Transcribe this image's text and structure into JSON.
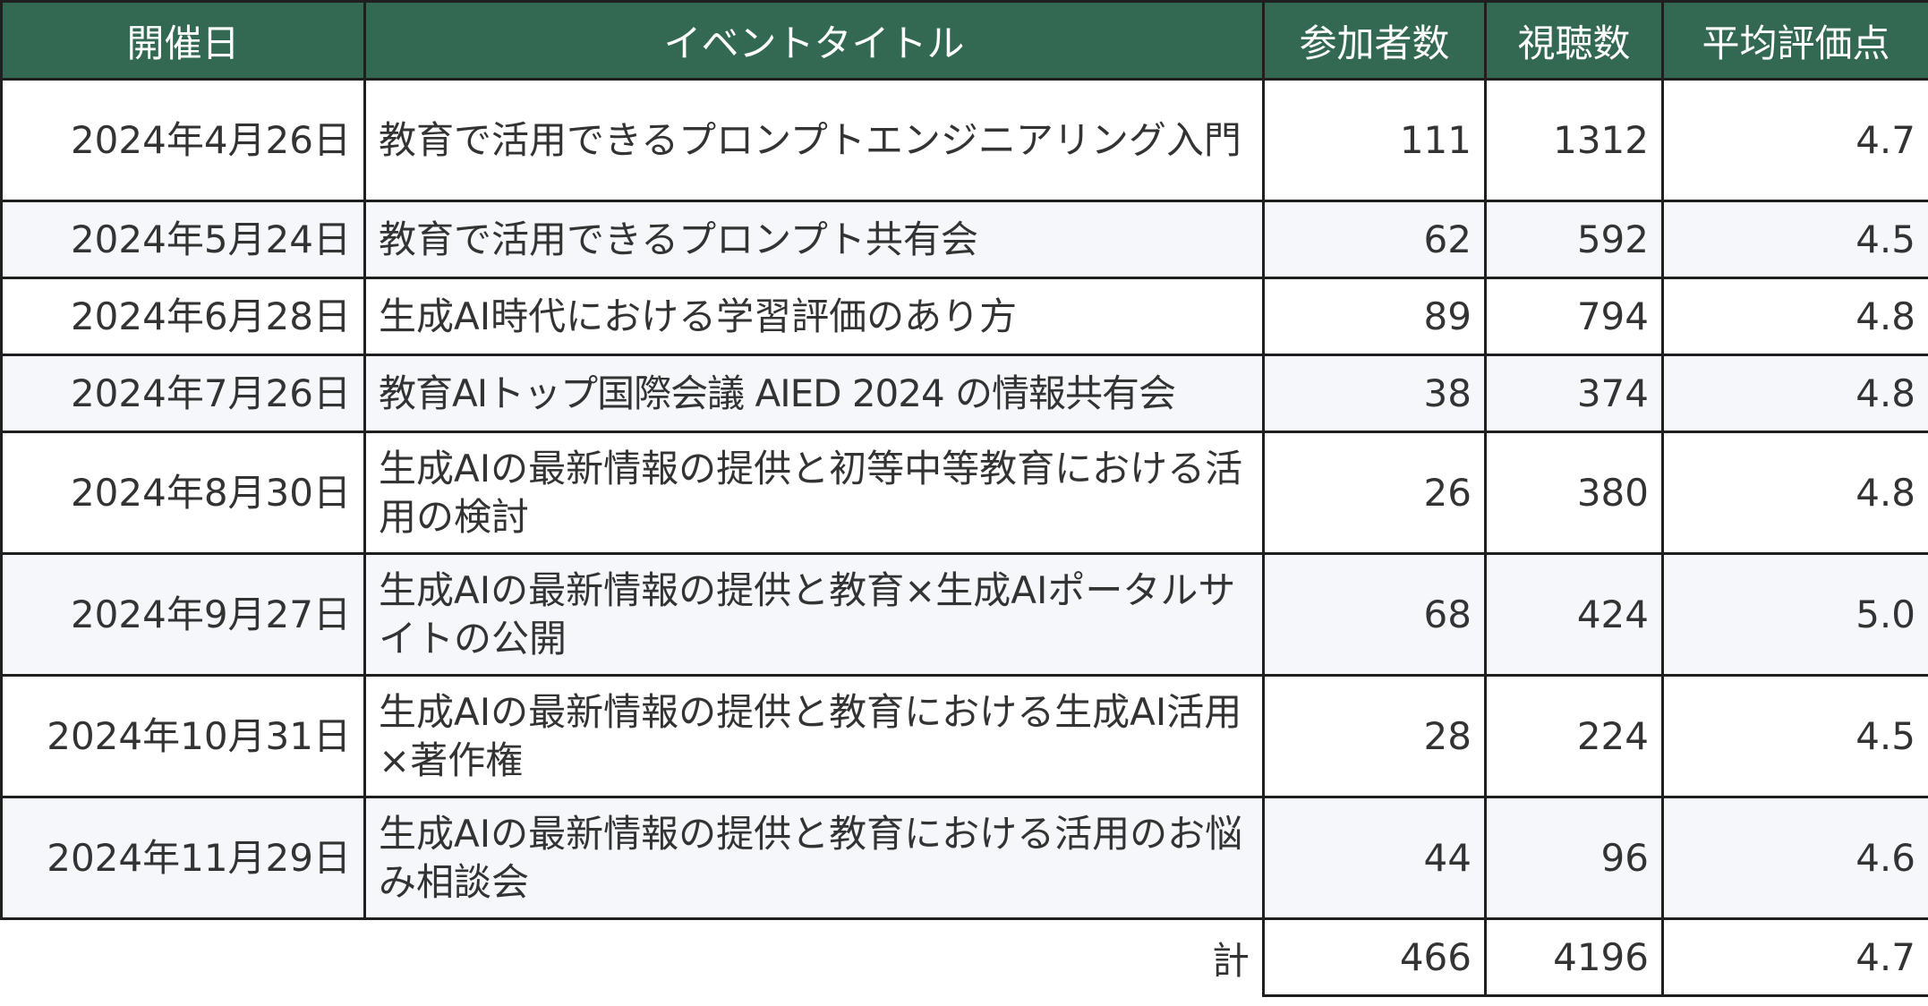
{
  "headers": {
    "date": "開催日",
    "title": "イベントタイトル",
    "participants": "参加者数",
    "views": "視聴数",
    "rating": "平均評価点"
  },
  "rows": [
    {
      "date": "2024年4月26日",
      "title": "教育で活用できるプロンプトエンジニアリング入門",
      "participants": "111",
      "views": "1312",
      "rating": "4.7"
    },
    {
      "date": "2024年5月24日",
      "title": "教育で活用できるプロンプト共有会",
      "participants": "62",
      "views": "592",
      "rating": "4.5"
    },
    {
      "date": "2024年6月28日",
      "title": "生成AI時代における学習評価のあり方",
      "participants": "89",
      "views": "794",
      "rating": "4.8"
    },
    {
      "date": "2024年7月26日",
      "title": "教育AIトップ国際会議 AIED 2024 の情報共有会",
      "participants": "38",
      "views": "374",
      "rating": "4.8"
    },
    {
      "date": "2024年8月30日",
      "title": "生成AIの最新情報の提供と初等中等教育における活用の検討",
      "participants": "26",
      "views": "380",
      "rating": "4.8"
    },
    {
      "date": "2024年9月27日",
      "title": "生成AIの最新情報の提供と教育×生成AIポータルサイトの公開",
      "participants": "68",
      "views": "424",
      "rating": "5.0"
    },
    {
      "date": "2024年10月31日",
      "title": "生成AIの最新情報の提供と教育における生成AI活用×著作権",
      "participants": "28",
      "views": "224",
      "rating": "4.5"
    },
    {
      "date": "2024年11月29日",
      "title": "生成AIの最新情報の提供と教育における活用のお悩み相談会",
      "participants": "44",
      "views": "96",
      "rating": "4.6"
    }
  ],
  "total": {
    "label": "計",
    "participants": "466",
    "views": "4196",
    "rating": "4.7"
  },
  "colors": {
    "header_bg": "#336953",
    "header_text": "#ffffff",
    "row_alt_bg": "#f5f7fa",
    "border": "#1f1f1f",
    "text": "#333333"
  }
}
